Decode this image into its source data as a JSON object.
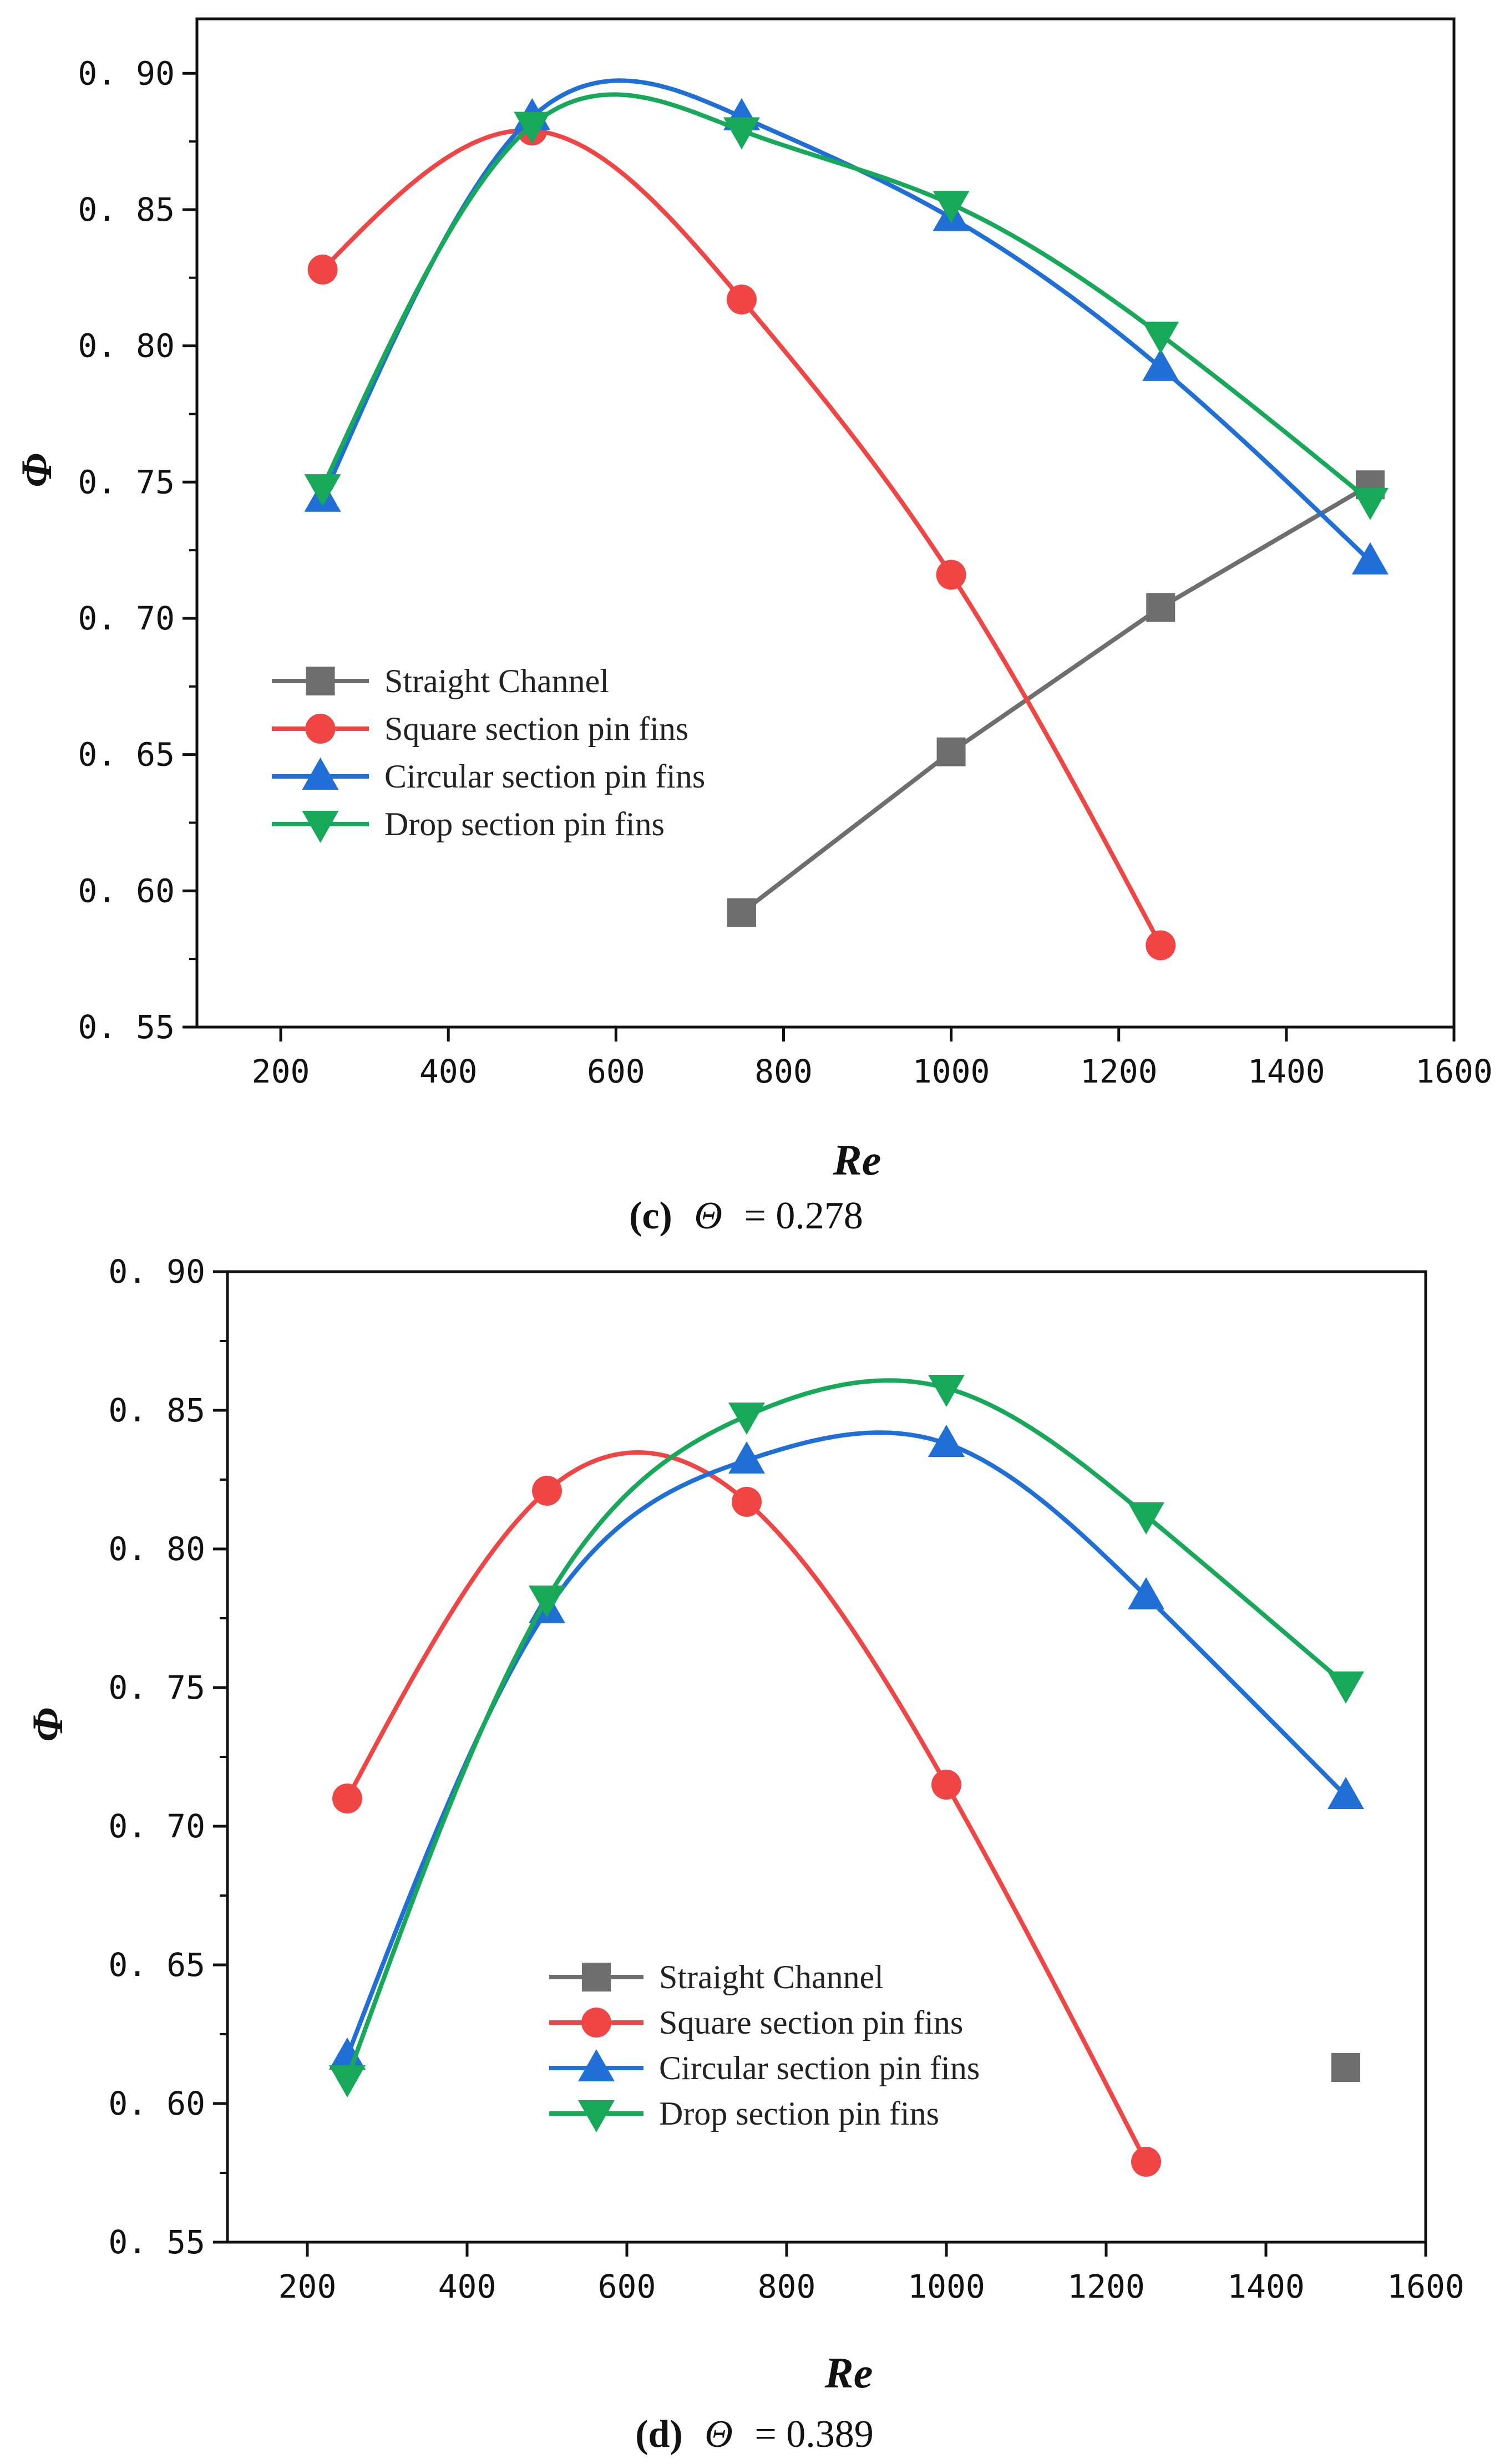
{
  "chart_data": [
    {
      "type": "line",
      "caption_label": "(c)",
      "caption_symbol": "Θ",
      "caption_value": "= 0.278",
      "xlabel": "Re",
      "ylabel": "Φ",
      "xlim": [
        100,
        1600
      ],
      "ylim": [
        0.55,
        0.92
      ],
      "xticks": [
        200,
        400,
        600,
        800,
        1000,
        1200,
        1400,
        1600
      ],
      "xtick_labels": [
        "200",
        "400",
        "600",
        "800",
        "1000",
        "1200",
        "1400",
        "1600"
      ],
      "yticks": [
        0.55,
        0.6,
        0.65,
        0.7,
        0.75,
        0.8,
        0.85,
        0.9
      ],
      "ytick_labels": [
        "0. 55",
        "0. 60",
        "0. 65",
        "0. 70",
        "0. 75",
        "0. 80",
        "0. 85",
        "0. 90"
      ],
      "legend_position": "lower-left",
      "series": [
        {
          "name": "Straight Channel",
          "color": "#6e6e6e",
          "marker": "square",
          "smooth": false,
          "x": [
            750,
            1000,
            1250,
            1500
          ],
          "y": [
            0.592,
            0.651,
            0.704,
            0.749
          ]
        },
        {
          "name": "Square section pin fins",
          "color": "#f04545",
          "marker": "circle",
          "smooth": true,
          "x": [
            250,
            500,
            750,
            1000,
            1250
          ],
          "y": [
            0.828,
            0.879,
            0.817,
            0.716,
            0.58
          ]
        },
        {
          "name": "Circular section pin fins",
          "color": "#1f6fd6",
          "marker": "triangle-up",
          "smooth": true,
          "x": [
            250,
            500,
            750,
            1000,
            1250,
            1500
          ],
          "y": [
            0.744,
            0.884,
            0.884,
            0.847,
            0.792,
            0.721
          ]
        },
        {
          "name": "Drop section pin fins",
          "color": "#18a85a",
          "marker": "triangle-down",
          "smooth": true,
          "x": [
            250,
            500,
            750,
            1000,
            1250,
            1500
          ],
          "y": [
            0.748,
            0.881,
            0.879,
            0.852,
            0.804,
            0.743
          ]
        }
      ]
    },
    {
      "type": "line",
      "caption_label": "(d)",
      "caption_symbol": "Θ",
      "caption_value": "= 0.389",
      "xlabel": "Re",
      "ylabel": "Φ",
      "xlim": [
        100,
        1600
      ],
      "ylim": [
        0.55,
        0.9
      ],
      "xticks": [
        200,
        400,
        600,
        800,
        1000,
        1200,
        1400,
        1600
      ],
      "xtick_labels": [
        "200",
        "400",
        "600",
        "800",
        "1000",
        "1200",
        "1400",
        "1600"
      ],
      "yticks": [
        0.55,
        0.6,
        0.65,
        0.7,
        0.75,
        0.8,
        0.85,
        0.9
      ],
      "ytick_labels": [
        "0. 55",
        "0. 60",
        "0. 65",
        "0. 70",
        "0. 75",
        "0. 80",
        "0. 85",
        "0. 90"
      ],
      "legend_position": "lower-center",
      "series": [
        {
          "name": "Straight Channel",
          "color": "#6e6e6e",
          "marker": "square",
          "smooth": false,
          "x": [
            1500
          ],
          "y": [
            0.613
          ]
        },
        {
          "name": "Square section pin fins",
          "color": "#f04545",
          "marker": "circle",
          "smooth": true,
          "x": [
            250,
            500,
            750,
            1000,
            1250
          ],
          "y": [
            0.71,
            0.821,
            0.817,
            0.715,
            0.579
          ]
        },
        {
          "name": "Circular section pin fins",
          "color": "#1f6fd6",
          "marker": "triangle-up",
          "smooth": true,
          "x": [
            250,
            500,
            750,
            1000,
            1250,
            1500
          ],
          "y": [
            0.617,
            0.778,
            0.832,
            0.838,
            0.783,
            0.711
          ]
        },
        {
          "name": "Drop section pin fins",
          "color": "#18a85a",
          "marker": "triangle-down",
          "smooth": true,
          "x": [
            250,
            500,
            750,
            1000,
            1250,
            1500
          ],
          "y": [
            0.609,
            0.782,
            0.848,
            0.858,
            0.812,
            0.751
          ]
        }
      ]
    }
  ]
}
